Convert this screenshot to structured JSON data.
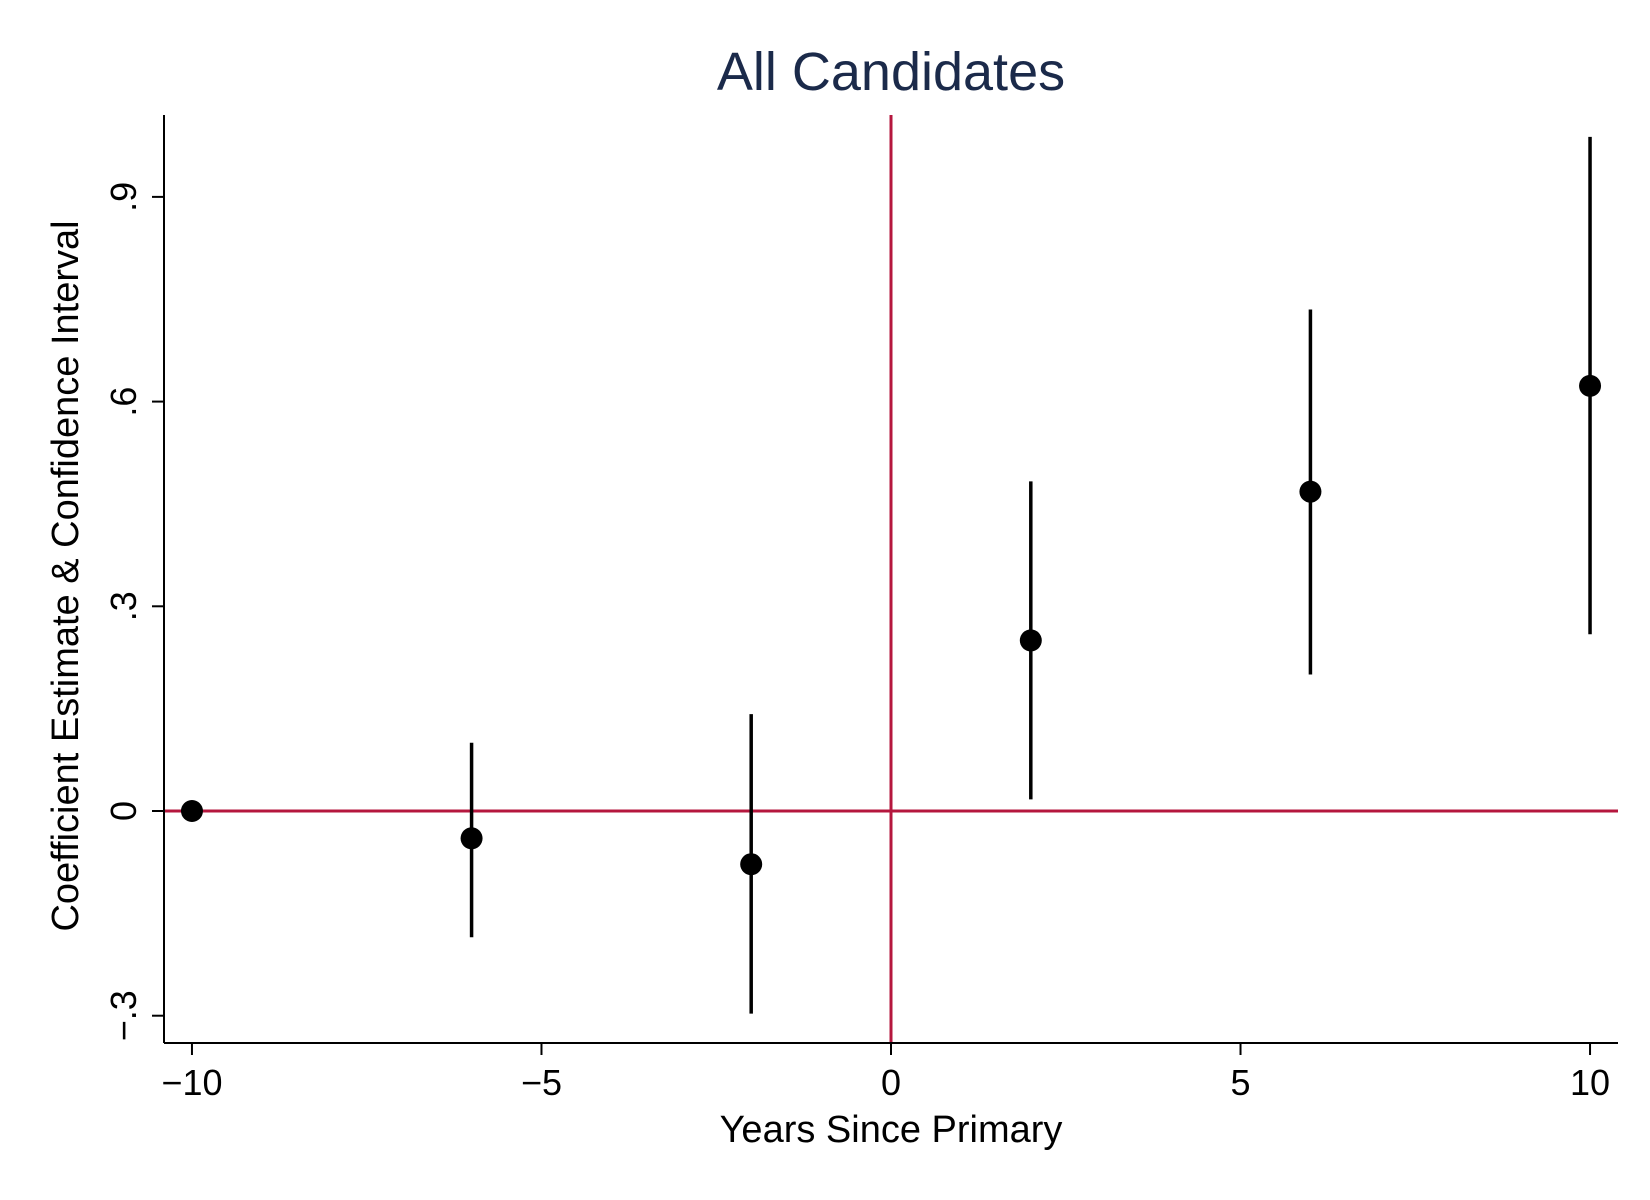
{
  "chart_data": {
    "type": "scatter",
    "title": "All Candidates",
    "xlabel": "Years Since Primary",
    "ylabel": "Coefficient Estimate & Confidence Interval",
    "xlim": [
      -10.4,
      10.4
    ],
    "ylim": [
      -0.34,
      1.02
    ],
    "xticks": [
      -10,
      -5,
      0,
      5,
      10
    ],
    "xtick_labels": [
      "−10",
      "−5",
      "0",
      "5",
      "10"
    ],
    "yticks": [
      -0.3,
      0,
      0.3,
      0.6,
      0.9
    ],
    "ytick_labels": [
      "−.3",
      "0",
      ".3",
      ".6",
      ".9"
    ],
    "grid": false,
    "reference_lines": {
      "x": 0,
      "y": 0,
      "color": "#b5173e"
    },
    "title_color": "#1b2a4a",
    "point_color": "#000000",
    "series": [
      {
        "points": [
          {
            "x": -10,
            "y": 0.0,
            "lo": 0.0,
            "hi": 0.0
          },
          {
            "x": -6,
            "y": -0.04,
            "lo": -0.185,
            "hi": 0.1
          },
          {
            "x": -2,
            "y": -0.078,
            "lo": -0.297,
            "hi": 0.142
          },
          {
            "x": 2,
            "y": 0.25,
            "lo": 0.017,
            "hi": 0.483
          },
          {
            "x": 6,
            "y": 0.468,
            "lo": 0.2,
            "hi": 0.735
          },
          {
            "x": 10,
            "y": 0.623,
            "lo": 0.259,
            "hi": 0.988
          }
        ]
      }
    ]
  }
}
